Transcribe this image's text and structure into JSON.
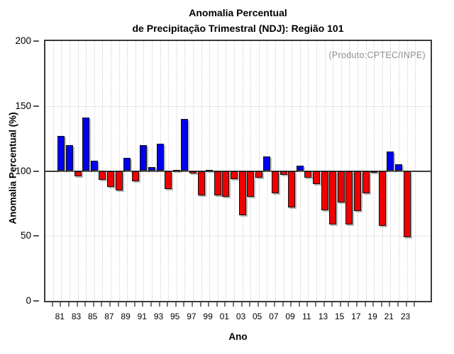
{
  "chart_data": {
    "type": "bar",
    "title_line1": "Anomalia Percentual",
    "title_line2": "de Precipitação Trimestral (NDJ): Região 101",
    "annotation": "(Produto:CPTEC/INPE)",
    "xlabel": "Ano",
    "ylabel": "Anomalia Percentual (%)",
    "ylim": [
      0,
      200
    ],
    "yticks": [
      "0",
      "50",
      "100",
      "150",
      "200"
    ],
    "ytick_values": [
      0,
      50,
      100,
      150,
      200
    ],
    "hgrid_values": [
      50,
      150
    ],
    "baseline_value": 100,
    "grid": "dotted",
    "legend_position": "none",
    "xtick_minor_years": [
      1980,
      2024
    ],
    "xtick_labels": [
      "81",
      "83",
      "85",
      "87",
      "89",
      "91",
      "93",
      "95",
      "97",
      "99",
      "01",
      "03",
      "05",
      "07",
      "09",
      "11",
      "13",
      "15",
      "17",
      "19",
      "21",
      "23"
    ],
    "years": [
      1981,
      1982,
      1983,
      1984,
      1985,
      1986,
      1987,
      1988,
      1989,
      1990,
      1991,
      1992,
      1993,
      1994,
      1995,
      1996,
      1997,
      1998,
      1999,
      2000,
      2001,
      2002,
      2003,
      2004,
      2005,
      2006,
      2007,
      2008,
      2009,
      2010,
      2011,
      2012,
      2013,
      2014,
      2015,
      2016,
      2017,
      2018,
      2019,
      2020,
      2021,
      2022,
      2023
    ],
    "values": [
      127,
      120,
      96,
      141,
      108,
      93,
      88,
      85,
      110,
      92,
      120,
      103,
      121,
      86,
      101,
      140,
      98,
      81,
      101,
      81,
      80,
      94,
      66,
      80,
      95,
      111,
      83,
      97,
      72,
      104,
      95,
      90,
      70,
      59,
      76,
      59,
      69,
      83,
      99,
      58,
      115,
      105,
      49
    ],
    "colors": {
      "above_baseline": "#0000ee",
      "below_baseline": "#ee0000",
      "bar_outline": "#101010",
      "baseline_line": "#3c3c3c",
      "gridline": "#cfcfcf",
      "annotation_text": "#8f8f8f",
      "frame": "#3a3a3a"
    }
  }
}
